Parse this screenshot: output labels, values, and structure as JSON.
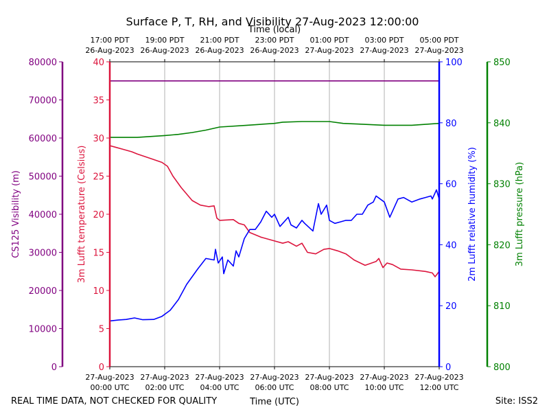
{
  "chart_data": {
    "type": "line",
    "title": "Surface P, T, RH, and Visibility 27-Aug-2023 12:00:00",
    "top_axis": {
      "label": "Time (local)",
      "ticks": [
        {
          "x_hours": 0,
          "line1": "17:00 PDT",
          "line2": "26-Aug-2023"
        },
        {
          "x_hours": 2,
          "line1": "19:00 PDT",
          "line2": "26-Aug-2023"
        },
        {
          "x_hours": 4,
          "line1": "21:00 PDT",
          "line2": "26-Aug-2023"
        },
        {
          "x_hours": 6,
          "line1": "23:00 PDT",
          "line2": "26-Aug-2023"
        },
        {
          "x_hours": 8,
          "line1": "01:00 PDT",
          "line2": "27-Aug-2023"
        },
        {
          "x_hours": 10,
          "line1": "03:00 PDT",
          "line2": "27-Aug-2023"
        },
        {
          "x_hours": 12,
          "line1": "05:00 PDT",
          "line2": "27-Aug-2023"
        }
      ]
    },
    "bottom_axis": {
      "label": "Time (UTC)",
      "xlim": [
        0,
        12
      ],
      "ticks": [
        {
          "x_hours": 0,
          "line1": "27-Aug-2023",
          "line2": "00:00 UTC"
        },
        {
          "x_hours": 2,
          "line1": "27-Aug-2023",
          "line2": "02:00 UTC"
        },
        {
          "x_hours": 4,
          "line1": "27-Aug-2023",
          "line2": "04:00 UTC"
        },
        {
          "x_hours": 6,
          "line1": "27-Aug-2023",
          "line2": "06:00 UTC"
        },
        {
          "x_hours": 8,
          "line1": "27-Aug-2023",
          "line2": "08:00 UTC"
        },
        {
          "x_hours": 10,
          "line1": "27-Aug-2023",
          "line2": "10:00 UTC"
        },
        {
          "x_hours": 12,
          "line1": "27-Aug-2023",
          "line2": "12:00 UTC"
        }
      ]
    },
    "grid": "vertical",
    "axes": {
      "visibility": {
        "label": "CS125 Visibility (m)",
        "color": "#800080",
        "ylim": [
          0,
          80000
        ],
        "ticks": [
          0,
          10000,
          20000,
          30000,
          40000,
          50000,
          60000,
          70000,
          80000
        ]
      },
      "temperature": {
        "label": "3m Lufft temperature (Celsius)",
        "color": "#dc143c",
        "ylim": [
          0,
          40
        ],
        "ticks": [
          0,
          5,
          10,
          15,
          20,
          25,
          30,
          35,
          40
        ]
      },
      "humidity": {
        "label": "2m Lufft relative humidity (%)",
        "color": "#0000ff",
        "ylim": [
          0,
          100
        ],
        "ticks": [
          0,
          20,
          40,
          60,
          80,
          100
        ]
      },
      "pressure": {
        "label": "3m Lufft pressure (hPa)",
        "color": "#008000",
        "ylim": [
          800,
          850
        ],
        "ticks": [
          800,
          810,
          820,
          830,
          840,
          850
        ]
      }
    },
    "series": [
      {
        "axis": "visibility",
        "color": "#800080",
        "x": [
          0,
          12
        ],
        "values": [
          75000,
          75000
        ]
      },
      {
        "axis": "temperature",
        "color": "#dc143c",
        "x": [
          0,
          0.2,
          0.5,
          0.8,
          1.0,
          1.5,
          1.9,
          2.1,
          2.3,
          2.6,
          3.0,
          3.3,
          3.6,
          3.8,
          3.9,
          4.0,
          4.5,
          4.7,
          4.9,
          5.1,
          5.5,
          6.0,
          6.3,
          6.5,
          6.8,
          7.0,
          7.2,
          7.5,
          7.8,
          8.0,
          8.3,
          8.6,
          8.9,
          9.3,
          9.7,
          9.8,
          9.95,
          10.1,
          10.3,
          10.6,
          11.0,
          11.5,
          11.75,
          11.85,
          12.0
        ],
        "values": [
          29,
          28.8,
          28.5,
          28.2,
          27.9,
          27.3,
          26.8,
          26.3,
          25,
          23.5,
          21.8,
          21.2,
          21.0,
          21.1,
          19.5,
          19.2,
          19.3,
          18.8,
          18.6,
          17.6,
          17.0,
          16.5,
          16.2,
          16.4,
          15.8,
          16.2,
          15.0,
          14.8,
          15.4,
          15.5,
          15.2,
          14.8,
          14.0,
          13.3,
          13.8,
          14.2,
          13.0,
          13.6,
          13.4,
          12.8,
          12.7,
          12.5,
          12.3,
          11.8,
          12.5
        ]
      },
      {
        "axis": "humidity",
        "color": "#0000ff",
        "x": [
          0,
          0.3,
          0.6,
          0.9,
          1.2,
          1.6,
          1.9,
          2.2,
          2.5,
          2.8,
          3.2,
          3.5,
          3.8,
          3.85,
          3.95,
          4.1,
          4.15,
          4.3,
          4.5,
          4.6,
          4.7,
          4.9,
          5.1,
          5.3,
          5.5,
          5.7,
          5.9,
          6.0,
          6.2,
          6.5,
          6.6,
          6.8,
          7.0,
          7.1,
          7.4,
          7.6,
          7.7,
          7.9,
          8.0,
          8.2,
          8.4,
          8.6,
          8.8,
          9.0,
          9.2,
          9.4,
          9.6,
          9.7,
          9.85,
          10.0,
          10.2,
          10.5,
          10.7,
          11.0,
          11.3,
          11.5,
          11.7,
          11.75,
          11.9,
          12.0
        ],
        "values": [
          15,
          15.3,
          15.5,
          16,
          15.4,
          15.5,
          16.5,
          18.5,
          22,
          27,
          32,
          35.5,
          35,
          38.5,
          34,
          36,
          30.5,
          35,
          33,
          38,
          36,
          42,
          45,
          45,
          47.5,
          51,
          49,
          50,
          46,
          49,
          46.5,
          45.5,
          48,
          47,
          44.5,
          53.5,
          50,
          53,
          48,
          47,
          47.5,
          48,
          48,
          50,
          50,
          53,
          54,
          56,
          55,
          54,
          49,
          55,
          55.5,
          54,
          55,
          55.5,
          56,
          55,
          58,
          55
        ]
      },
      {
        "axis": "pressure",
        "color": "#008000",
        "x": [
          0,
          1,
          2,
          2.5,
          3,
          3.5,
          4,
          5,
          6,
          6.3,
          7,
          8,
          8.5,
          9,
          10,
          11,
          12
        ],
        "values": [
          837.6,
          837.6,
          837.9,
          838.1,
          838.4,
          838.8,
          839.3,
          839.6,
          839.9,
          840.1,
          840.2,
          840.2,
          839.9,
          839.8,
          839.6,
          839.6,
          839.9
        ]
      }
    ]
  },
  "footer": {
    "left": "REAL TIME DATA, NOT CHECKED FOR QUALITY",
    "right": "Site: ISS2"
  }
}
